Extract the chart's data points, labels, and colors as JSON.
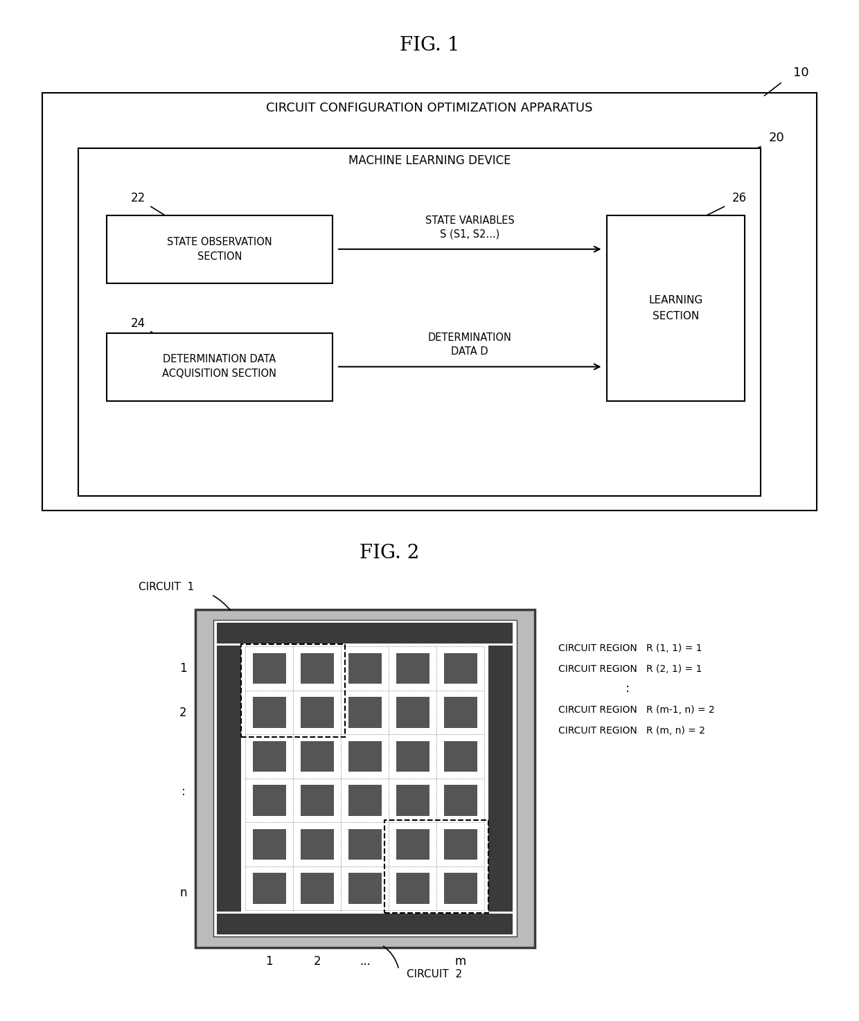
{
  "fig_title": "FIG. 1",
  "fig2_title": "FIG. 2",
  "bg_color": "#ffffff",
  "outer_box_label": "CIRCUIT CONFIGURATION OPTIMIZATION APPARATUS",
  "outer_box_ref": "10",
  "inner_box_label": "MACHINE LEARNING DEVICE",
  "inner_box_ref": "20",
  "box1_label": "STATE OBSERVATION\nSECTION",
  "box1_ref": "22",
  "box2_label": "DETERMINATION DATA\nACQUISITION SECTION",
  "box2_ref": "24",
  "box3_label": "LEARNING\nSECTION",
  "box3_ref": "26",
  "arrow1_label": "STATE VARIABLES\nS (S1, S2...)",
  "arrow2_label": "DETERMINATION\nDATA D",
  "circuit_regions_top": [
    "CIRCUIT REGION   R (1, 1) = 1",
    "CIRCUIT REGION   R (2, 1) = 1"
  ],
  "circuit_regions_bot": [
    "CIRCUIT REGION   R (m-1, n) = 2",
    "CIRCUIT REGION   R (m, n) = 2"
  ],
  "circuit1_label": "CIRCUIT  1",
  "circuit2_label": "CIRCUIT  2",
  "grid_cols": 5,
  "grid_rows": 6,
  "x_labels": [
    "1",
    "2",
    "...",
    "m"
  ],
  "y_labels": [
    "1",
    "2",
    ":",
    "n"
  ],
  "dark_color": "#3a3a3a",
  "med_dark_color": "#555555",
  "cell_color": "#555555",
  "outer_border_color": "#aaaaaa"
}
